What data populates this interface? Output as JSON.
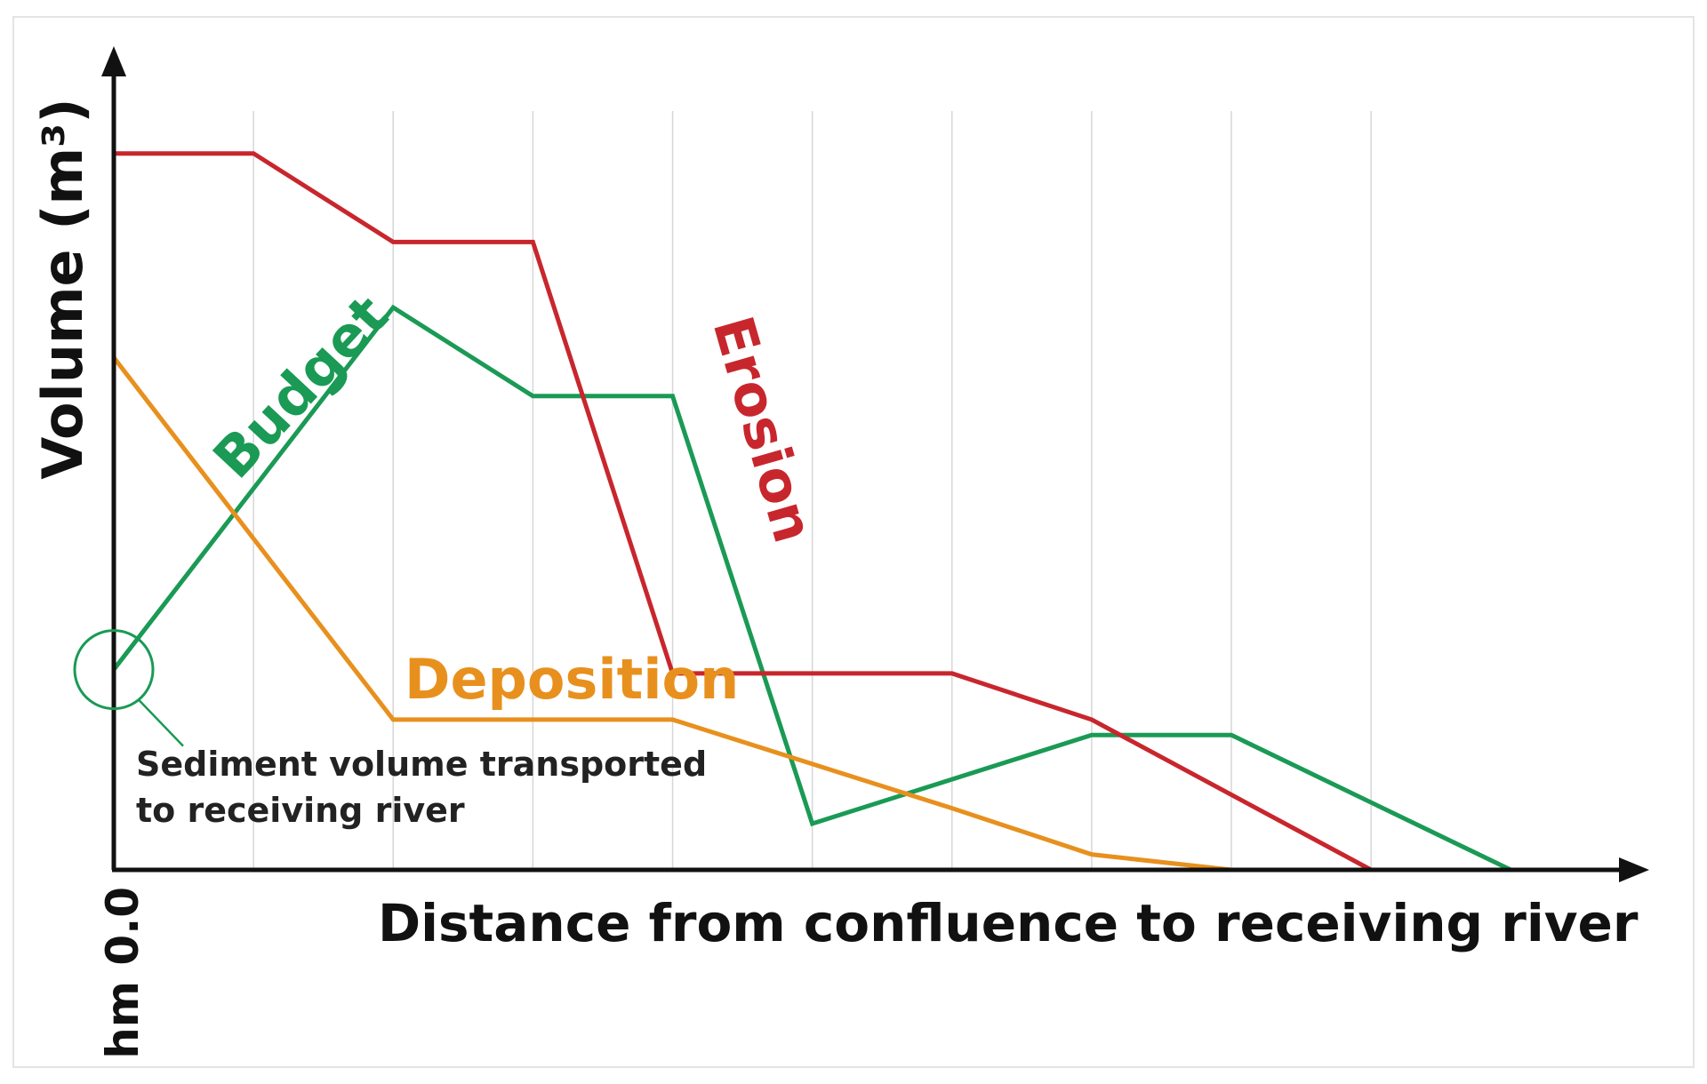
{
  "chart_data": {
    "type": "line",
    "title": "",
    "xlabel": "Distance from confluence to receiving river",
    "ylabel": "Volume (m³)",
    "x_start_label": "hm 0.0",
    "x": [
      0,
      1,
      2,
      3,
      4,
      5,
      6,
      7,
      8,
      9,
      10
    ],
    "xlim": [
      0,
      10.8
    ],
    "ylim": [
      0,
      100
    ],
    "grid": true,
    "series": [
      {
        "name": "Erosion",
        "color": "#c8262d",
        "values": [
          93,
          93,
          81.5,
          81.5,
          25.5,
          null,
          25.5,
          19.5,
          null,
          0,
          null
        ]
      },
      {
        "name": "Budget",
        "color": "#1a9a55",
        "values": [
          26,
          null,
          73,
          61.5,
          61.5,
          6,
          null,
          17.5,
          17.5,
          null,
          0
        ]
      },
      {
        "name": "Deposition",
        "color": "#e8901e",
        "values": [
          66.5,
          null,
          19.5,
          null,
          19.5,
          null,
          8,
          2,
          0,
          null,
          null
        ]
      }
    ],
    "annotations": [
      {
        "text": "Sediment volume transported to receiving river",
        "x": 0,
        "y": 26
      }
    ]
  },
  "colors": {
    "axis": "#111111",
    "grid": "#d6d6d6",
    "annotation_text": "#222222"
  }
}
